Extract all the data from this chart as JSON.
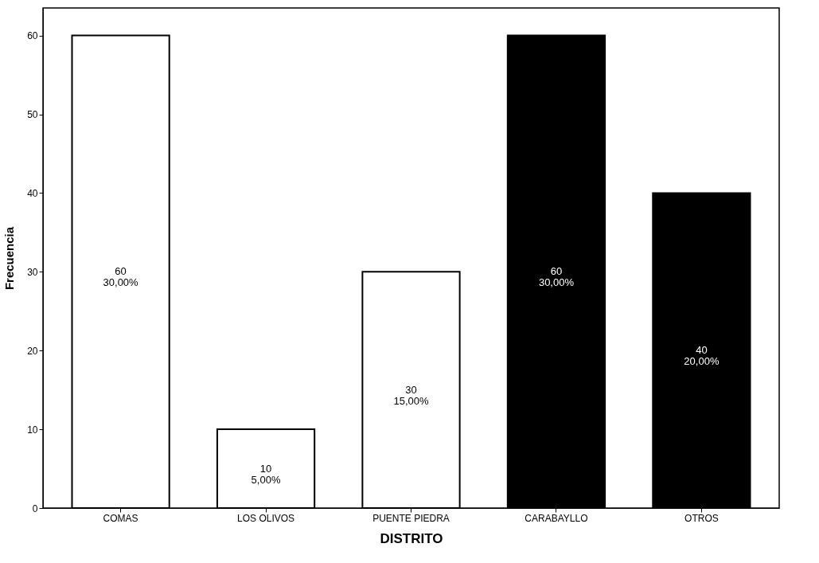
{
  "chart_data": {
    "type": "bar",
    "xlabel": "DISTRITO",
    "ylabel": "Frecuencia",
    "categories": [
      "COMAS",
      "LOS OLIVOS",
      "PUENTE PIEDRA",
      "CARABAYLLO",
      "OTROS"
    ],
    "values": [
      60,
      10,
      30,
      60,
      40
    ],
    "colors": [
      "#ffffff",
      "#ffffff",
      "#ffffff",
      "#000000",
      "#000000"
    ],
    "value_labels": [
      "60\n30,00%",
      "10\n5,00%",
      "30\n15,00%",
      "60\n30,00%",
      "40\n20,00%"
    ],
    "ylim": [
      0,
      63.5
    ],
    "yticks": [
      0,
      10,
      20,
      30,
      40,
      50,
      60
    ],
    "grid": false
  }
}
